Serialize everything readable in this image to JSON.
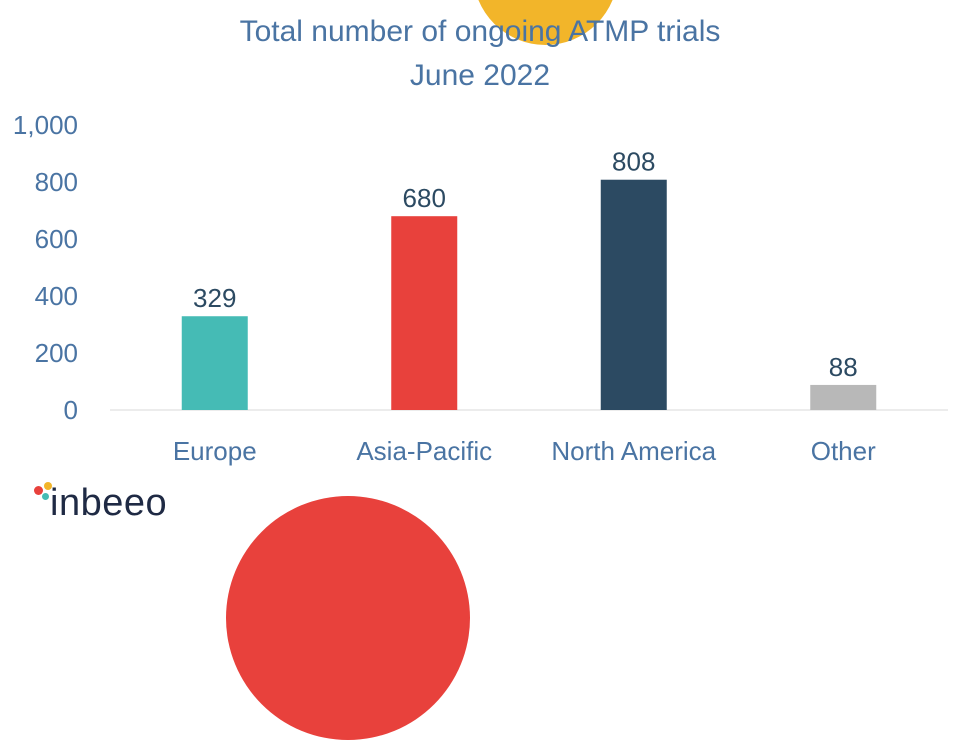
{
  "chart_data": {
    "type": "bar",
    "title": "Total number of ongoing ATMP trials",
    "subtitle": "June 2022",
    "categories": [
      "Europe",
      "Asia-Pacific",
      "North America",
      "Other"
    ],
    "values": [
      329,
      680,
      808,
      88
    ],
    "value_labels": [
      "329",
      "680",
      "808",
      "88"
    ],
    "bar_colors": [
      "#45bbb5",
      "#e8413c",
      "#2c4a62",
      "#b8b8b8"
    ],
    "ylim": [
      0,
      1000
    ],
    "yticks": [
      0,
      200,
      400,
      600,
      800,
      1000
    ],
    "ytick_labels": [
      "0",
      "200",
      "400",
      "600",
      "800",
      "1,000"
    ],
    "xlabel": "",
    "ylabel": "",
    "grid": false,
    "legend": "none",
    "text_color": "#4a74a3",
    "value_label_color": "#2c4a62"
  },
  "logo": {
    "text": "inbeeo",
    "dot_colors": [
      "#e8413c",
      "#f2b52a",
      "#45bbb5",
      "#1f2a44"
    ]
  }
}
